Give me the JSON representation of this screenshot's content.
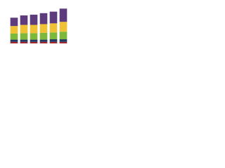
{
  "chart_data": {
    "type": "stacked_bar",
    "categories": [
      null,
      null,
      null,
      null,
      null,
      null
    ],
    "series": [
      {
        "color": "#a3222c",
        "values": [
          4,
          4,
          4,
          4,
          4,
          4
        ]
      },
      {
        "color": "#1f3864",
        "values": [
          6,
          6,
          6,
          6,
          7,
          7
        ]
      },
      {
        "color": "#7cb93b",
        "values": [
          16,
          17,
          17,
          18,
          18,
          20
        ]
      },
      {
        "color": "#f0c233",
        "values": [
          20,
          22,
          22,
          23,
          24,
          26
        ]
      },
      {
        "color": "#5e3b7d",
        "values": [
          22,
          25,
          27,
          29,
          31,
          35
        ]
      }
    ],
    "ylim": [
      0,
      100
    ]
  }
}
